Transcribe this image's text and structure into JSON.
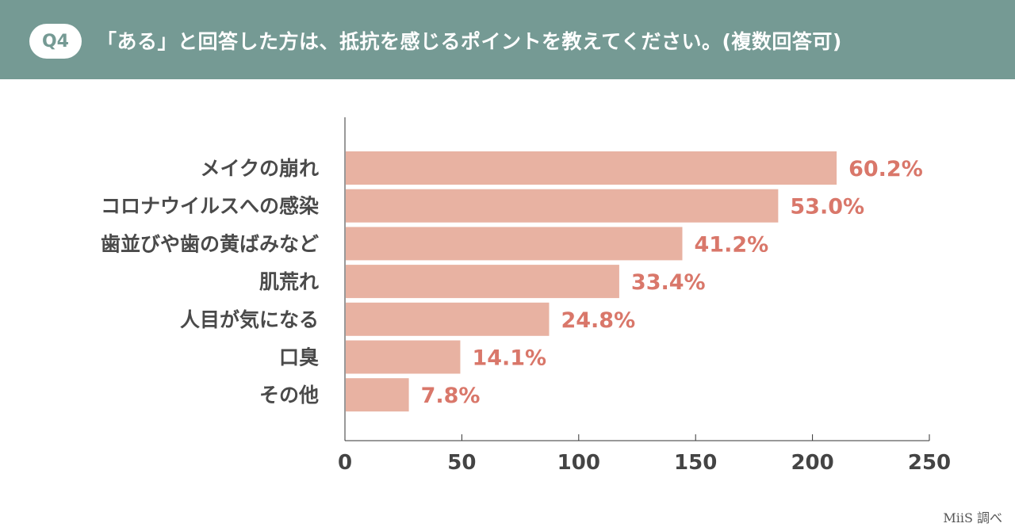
{
  "header": {
    "badge": "Q4",
    "title": "「ある」と回答した方は、抵抗を感じるポイントを教えてください。(複数回答可)"
  },
  "credit": "MiiS 調べ",
  "colors": {
    "header_bg": "#759a94",
    "bar": "#e8b2a2",
    "value_label": "#d9776a",
    "category_label": "#4a4a4a",
    "axis": "#333333"
  },
  "chart_data": {
    "type": "bar",
    "orientation": "horizontal",
    "categories": [
      "メイクの崩れ",
      "コロナウイルスへの感染",
      "歯並びや歯の黄ばみなど",
      "肌荒れ",
      "人目が気になる",
      "口臭",
      "その他"
    ],
    "values": [
      210,
      185,
      144,
      117,
      87,
      49,
      27
    ],
    "value_labels": [
      "60.2%",
      "53.0%",
      "41.2%",
      "33.4%",
      "24.8%",
      "14.1%",
      "7.8%"
    ],
    "xlim": [
      0,
      250
    ],
    "x_ticks": [
      "0",
      "50",
      "100",
      "150",
      "200",
      "250"
    ],
    "grid": false
  }
}
